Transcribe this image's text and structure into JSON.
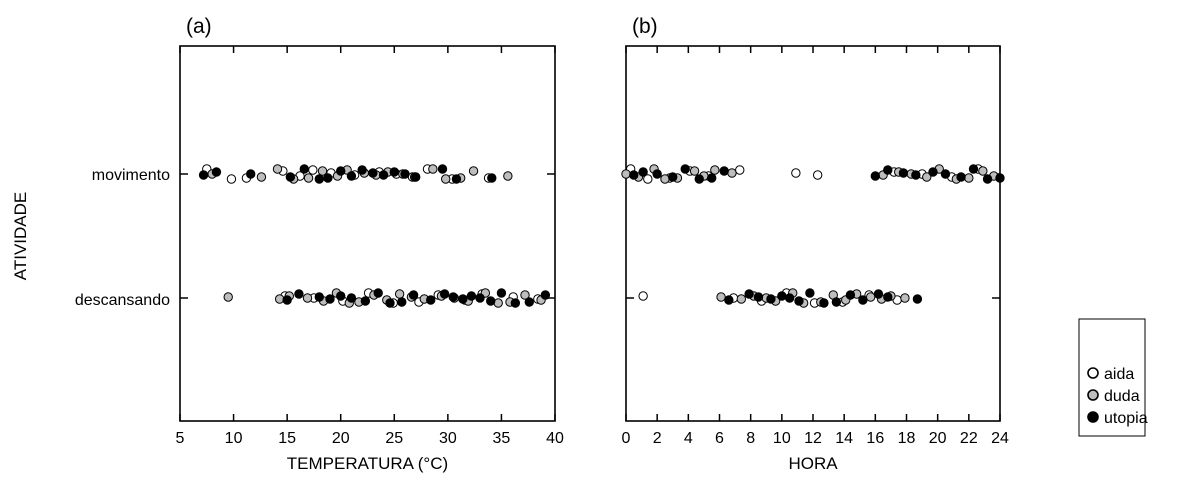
{
  "chart_data": {
    "type": "scatter",
    "y_title": "ATIVIDADE",
    "categories": [
      "movimento",
      "descansando"
    ],
    "series_names": [
      "aida",
      "duda",
      "utopia"
    ],
    "colors": {
      "aida": "#ffffff",
      "duda": "#bdbdbd",
      "utopia": "#000000"
    },
    "legend": {
      "position": "right",
      "items": [
        "aida",
        "duda",
        "utopia"
      ]
    },
    "grid": false,
    "panels": [
      {
        "panel_label": "(a)",
        "xlabel": "TEMPERATURA (°C)",
        "xlim": [
          5,
          40
        ],
        "xticks": [
          "5",
          "10",
          "15",
          "20",
          "25",
          "30",
          "35",
          "40"
        ],
        "series": [
          {
            "name": "aida",
            "movimento": [
              7.5,
              9.8,
              11.2,
              14.6,
              16.2,
              17.4,
              19.1,
              21.3,
              23.6,
              25.2,
              26.7,
              28.1,
              30.4,
              33.8
            ],
            "descansando": [
              14.8,
              17.5,
              20.2,
              22.6,
              24.9,
              27.3,
              29.1,
              31.6,
              33.2,
              36.1,
              38.4
            ]
          },
          {
            "name": "duda",
            "movimento": [
              8.0,
              12.6,
              14.1,
              15.6,
              17.0,
              18.3,
              19.7,
              20.6,
              22.2,
              23.3,
              24.4,
              25.8,
              26.9,
              28.6,
              29.8,
              31.2,
              32.4,
              35.6
            ],
            "descansando": [
              9.5,
              14.3,
              15.2,
              16.9,
              18.4,
              19.6,
              20.8,
              21.7,
              23.1,
              24.3,
              25.5,
              26.6,
              27.8,
              29.4,
              30.6,
              31.9,
              33.5,
              34.7,
              35.8,
              37.2,
              38.7
            ]
          },
          {
            "name": "utopia",
            "movimento": [
              7.2,
              8.4,
              11.6,
              15.3,
              16.6,
              18.0,
              18.8,
              20.0,
              21.0,
              22.0,
              23.0,
              24.0,
              25.0,
              26.0,
              27.0,
              29.5,
              30.8,
              34.1
            ],
            "descansando": [
              15.0,
              16.1,
              18.0,
              19.0,
              20.0,
              21.0,
              22.3,
              23.5,
              24.6,
              25.7,
              26.8,
              28.4,
              29.7,
              30.5,
              31.4,
              32.2,
              33.0,
              34.0,
              35.0,
              36.3,
              37.6,
              39.1
            ]
          }
        ]
      },
      {
        "panel_label": "(b)",
        "xlabel": "HORA",
        "xlim": [
          0,
          24
        ],
        "xticks": [
          "0",
          "2",
          "4",
          "6",
          "8",
          "10",
          "12",
          "14",
          "16",
          "18",
          "20",
          "22",
          "24"
        ],
        "series": [
          {
            "name": "aida",
            "movimento": [
              0.3,
              1.4,
              2.8,
              4.1,
              5.3,
              7.3,
              10.9,
              12.3,
              17.2,
              19.0,
              20.9,
              22.6
            ],
            "descansando": [
              1.1,
              6.9,
              8.7,
              10.3,
              12.1,
              13.9,
              15.6,
              17.4
            ]
          },
          {
            "name": "duda",
            "movimento": [
              0.0,
              0.8,
              1.8,
              2.5,
              3.3,
              4.4,
              5.0,
              5.7,
              6.8,
              16.5,
              17.5,
              18.3,
              19.3,
              20.1,
              21.2,
              22.0,
              22.9,
              23.6
            ],
            "descansando": [
              6.1,
              7.4,
              8.2,
              9.0,
              9.6,
              10.7,
              11.4,
              12.5,
              13.3,
              14.1,
              14.8,
              15.7,
              16.4,
              17.0,
              17.9
            ]
          },
          {
            "name": "utopia",
            "movimento": [
              0.5,
              1.1,
              2.0,
              3.0,
              3.8,
              4.7,
              5.5,
              6.3,
              16.0,
              16.8,
              17.8,
              18.6,
              19.7,
              20.5,
              21.5,
              22.3,
              23.2,
              24.0
            ],
            "descansando": [
              6.6,
              7.9,
              8.5,
              9.3,
              10.0,
              10.5,
              11.1,
              11.8,
              12.7,
              13.5,
              14.4,
              15.2,
              16.2,
              16.8,
              18.7
            ]
          }
        ]
      }
    ]
  }
}
